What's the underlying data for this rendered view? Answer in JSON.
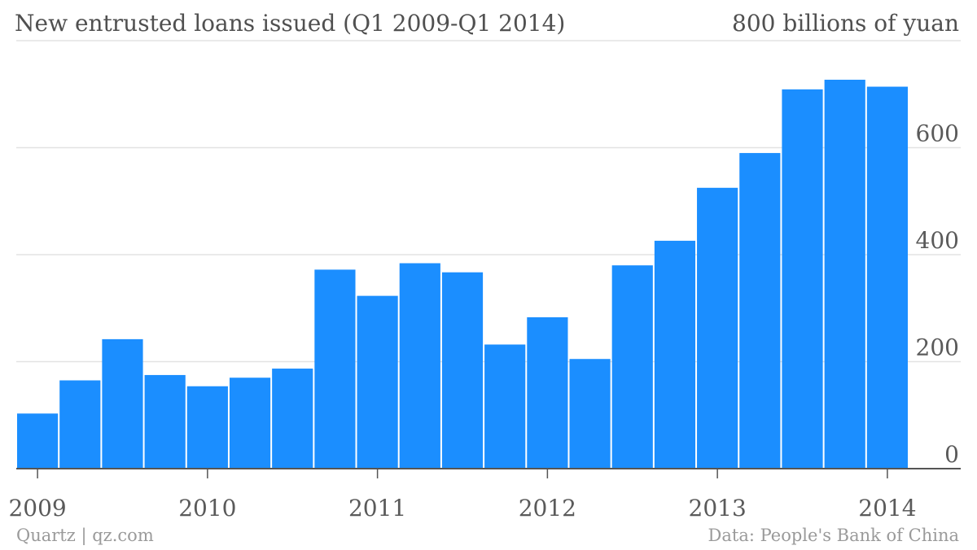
{
  "header": {
    "title": "New entrusted loans issued (Q1 2009-Q1 2014)",
    "unit_label": "800 billions of yuan"
  },
  "footer": {
    "source_left": "Quartz | qz.com",
    "source_right": "Data: People's Bank of China"
  },
  "colors": {
    "bar": "#1b8eff",
    "grid": "#e3e3e3",
    "axis": "#555555",
    "text": "#5a5a5a",
    "footer_text": "#9a9a9a"
  },
  "chart_data": {
    "type": "bar",
    "title": "New entrusted loans issued (Q1 2009-Q1 2014)",
    "ylabel": "billions of yuan",
    "xlabel": "",
    "ylim": [
      0,
      800
    ],
    "y_ticks": [
      "0",
      "200",
      "400",
      "600"
    ],
    "x_tick_labels": [
      "2009",
      "2010",
      "2011",
      "2012",
      "2013",
      "2014"
    ],
    "categories": [
      "Q1 2009",
      "Q2 2009",
      "Q3 2009",
      "Q4 2009",
      "Q1 2010",
      "Q2 2010",
      "Q3 2010",
      "Q4 2010",
      "Q1 2011",
      "Q2 2011",
      "Q3 2011",
      "Q4 2011",
      "Q1 2012",
      "Q2 2012",
      "Q3 2012",
      "Q4 2012",
      "Q1 2013",
      "Q2 2013",
      "Q3 2013",
      "Q4 2013",
      "Q1 2014"
    ],
    "values": [
      103,
      165,
      242,
      175,
      154,
      170,
      187,
      372,
      323,
      384,
      367,
      232,
      283,
      205,
      380,
      426,
      525,
      590,
      709,
      727,
      714
    ],
    "grid": true,
    "y_axis_position": "right"
  }
}
